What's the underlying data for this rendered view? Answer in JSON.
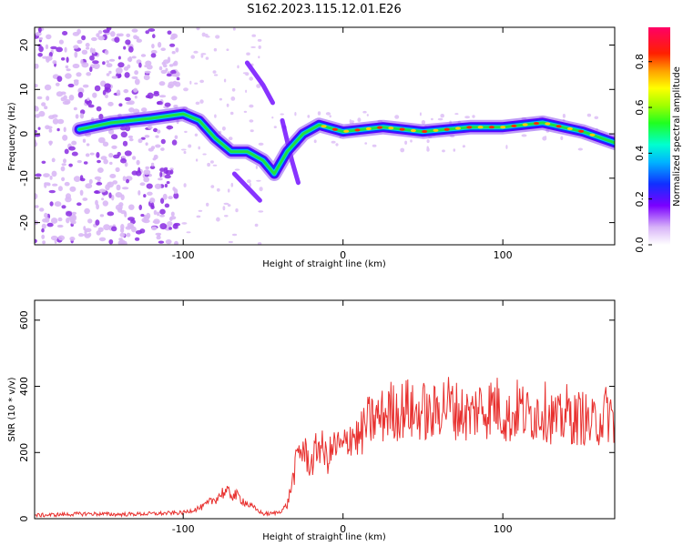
{
  "title": "S162.2023.115.12.01.E26",
  "chart_data": [
    {
      "type": "heatmap",
      "xlabel": "Height of straight line (km)",
      "ylabel": "Frequency (Hz)",
      "xlim": [
        -193,
        170
      ],
      "ylim": [
        -25,
        24
      ],
      "xticks": [
        -100,
        0,
        100
      ],
      "yticks": [
        -20,
        -10,
        0,
        10,
        20
      ],
      "colorbar": {
        "label": "Normalized spectral amplitude",
        "range": [
          0,
          0.95
        ],
        "ticks": [
          "0.0",
          "0.2",
          "0.4",
          "0.6",
          "0.8"
        ],
        "tick_values": [
          0,
          0.2,
          0.4,
          0.6,
          0.8
        ]
      },
      "ridge": [
        {
          "x": -165,
          "y": 1
        },
        {
          "x": -145,
          "y": 2.5
        },
        {
          "x": -120,
          "y": 3.5
        },
        {
          "x": -100,
          "y": 4.5
        },
        {
          "x": -90,
          "y": 3
        },
        {
          "x": -80,
          "y": -1
        },
        {
          "x": -70,
          "y": -4
        },
        {
          "x": -60,
          "y": -4
        },
        {
          "x": -50,
          "y": -6
        },
        {
          "x": -43,
          "y": -9
        },
        {
          "x": -35,
          "y": -4
        },
        {
          "x": -25,
          "y": 0
        },
        {
          "x": -15,
          "y": 2
        },
        {
          "x": 0,
          "y": 0.5
        },
        {
          "x": 25,
          "y": 1.5
        },
        {
          "x": 50,
          "y": 0.5
        },
        {
          "x": 80,
          "y": 1.5
        },
        {
          "x": 100,
          "y": 1.5
        },
        {
          "x": 125,
          "y": 2.5
        },
        {
          "x": 150,
          "y": 0.5
        },
        {
          "x": 170,
          "y": -2
        }
      ],
      "secondary_tracks": [
        [
          {
            "x": -60,
            "y": 16
          },
          {
            "x": -50,
            "y": 11
          },
          {
            "x": -44,
            "y": 7
          }
        ],
        [
          {
            "x": -68,
            "y": -9
          },
          {
            "x": -60,
            "y": -12
          },
          {
            "x": -52,
            "y": -15
          }
        ],
        [
          {
            "x": -38,
            "y": 3
          },
          {
            "x": -32,
            "y": -6
          },
          {
            "x": -28,
            "y": -11
          }
        ]
      ]
    },
    {
      "type": "line",
      "xlabel": "Height of straight line (km)",
      "ylabel": "SNR (10 * v/v)",
      "xlim": [
        -193,
        170
      ],
      "ylim": [
        0,
        660
      ],
      "xticks": [
        -100,
        0,
        100
      ],
      "yticks": [
        0,
        200,
        400,
        600
      ],
      "series": [
        {
          "color": "#e8312f",
          "x": [
            -193,
            -180,
            -160,
            -140,
            -120,
            -100,
            -95,
            -88,
            -80,
            -75,
            -70,
            -65,
            -60,
            -55,
            -50,
            -45,
            -40,
            -35,
            -30,
            -28,
            -25,
            -20,
            -15,
            -10,
            -5,
            0,
            5,
            10,
            15,
            20,
            25,
            30,
            35,
            40,
            45,
            50,
            55,
            60,
            65,
            70,
            75,
            80,
            85,
            90,
            95,
            100,
            105,
            110,
            115,
            120,
            125,
            130,
            135,
            140,
            145,
            150,
            155,
            160,
            165,
            170
          ],
          "values": [
            10,
            12,
            15,
            13,
            15,
            18,
            25,
            35,
            60,
            80,
            75,
            65,
            45,
            30,
            15,
            15,
            20,
            40,
            150,
            200,
            210,
            160,
            230,
            180,
            220,
            210,
            260,
            240,
            290,
            300,
            310,
            330,
            320,
            340,
            310,
            330,
            300,
            340,
            350,
            330,
            320,
            310,
            340,
            330,
            350,
            320,
            300,
            340,
            310,
            320,
            330,
            310,
            290,
            320,
            300,
            310,
            280,
            300,
            320,
            300
          ]
        }
      ]
    }
  ]
}
